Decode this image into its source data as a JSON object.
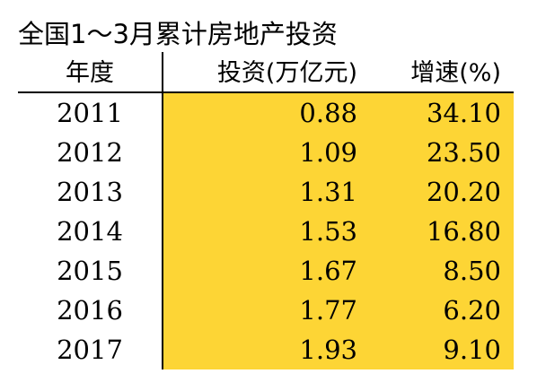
{
  "title": "全国1～3月累计房地产投资",
  "chart_data": {
    "type": "table",
    "title": "全国1～3月累计房地产投资",
    "columns": [
      "年度",
      "投资(万亿元)",
      "增速(%)"
    ],
    "rows": [
      {
        "year": "2011",
        "investment": "0.88",
        "growth": "34.10"
      },
      {
        "year": "2012",
        "investment": "1.09",
        "growth": "23.50"
      },
      {
        "year": "2013",
        "investment": "1.31",
        "growth": "20.20"
      },
      {
        "year": "2014",
        "investment": "1.53",
        "growth": "16.80"
      },
      {
        "year": "2015",
        "investment": "1.67",
        "growth": "8.50"
      },
      {
        "year": "2016",
        "investment": "1.77",
        "growth": "6.20"
      },
      {
        "year": "2017",
        "investment": "1.93",
        "growth": "9.10"
      }
    ]
  },
  "colors": {
    "highlight": "#fdd535",
    "text": "#000000",
    "rule": "#000000"
  }
}
